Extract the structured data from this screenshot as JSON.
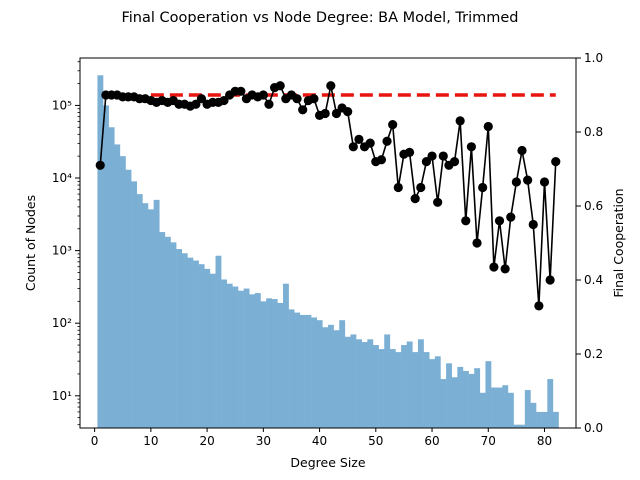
{
  "chart_data": {
    "type": "bar+line",
    "title": "Final Cooperation vs Node Degree: BA Model, Trimmed",
    "xlabel": "Degree Size",
    "ylabel_left": "Count of Nodes",
    "ylabel_right": "Final Cooperation",
    "x_ticks": [
      0,
      10,
      20,
      30,
      40,
      50,
      60,
      70,
      80
    ],
    "xlim": [
      -2.6,
      85.6
    ],
    "y_left_scale": "log",
    "y_left_ticks": [
      {
        "value": 10,
        "label": "10¹"
      },
      {
        "value": 100,
        "label": "10²"
      },
      {
        "value": 1000,
        "label": "10³"
      },
      {
        "value": 10000,
        "label": "10⁴"
      },
      {
        "value": 100000,
        "label": "10⁵"
      }
    ],
    "y_left_lim": [
      3.6,
      450000
    ],
    "y_right_ticks": [
      0.0,
      0.2,
      0.4,
      0.6,
      0.8,
      1.0
    ],
    "y_right_lim": [
      0.0,
      1.0
    ],
    "bar_color": "#7bafd4",
    "line_color": "#000000",
    "ref_line_color": "#e8140e",
    "grid": false,
    "legend": "none",
    "histogram": {
      "degrees": [
        1,
        2,
        3,
        4,
        5,
        6,
        7,
        8,
        9,
        10,
        11,
        12,
        13,
        14,
        15,
        16,
        17,
        18,
        19,
        20,
        21,
        22,
        23,
        24,
        25,
        26,
        27,
        28,
        29,
        30,
        31,
        32,
        33,
        34,
        35,
        36,
        37,
        38,
        39,
        40,
        41,
        42,
        43,
        44,
        45,
        46,
        47,
        48,
        49,
        50,
        51,
        52,
        53,
        54,
        55,
        56,
        57,
        58,
        59,
        60,
        61,
        62,
        63,
        64,
        65,
        66,
        67,
        68,
        69,
        70,
        71,
        72,
        73,
        74,
        75,
        76,
        77,
        78,
        79,
        80,
        81,
        82
      ],
      "counts": [
        260000,
        100000,
        50000,
        29000,
        20000,
        13000,
        9000,
        6000,
        4500,
        3700,
        5000,
        1800,
        1550,
        1300,
        1050,
        920,
        800,
        730,
        650,
        560,
        480,
        850,
        400,
        350,
        320,
        280,
        300,
        250,
        260,
        200,
        220,
        215,
        190,
        350,
        155,
        140,
        130,
        130,
        120,
        110,
        88,
        95,
        80,
        110,
        65,
        70,
        60,
        55,
        60,
        50,
        44,
        70,
        44,
        40,
        50,
        56,
        40,
        60,
        40,
        32,
        35,
        17,
        28,
        18,
        25,
        22,
        20,
        24,
        11,
        30,
        13,
        13,
        14,
        11,
        4,
        4,
        12,
        8,
        6,
        6,
        17,
        6
      ]
    },
    "cooperation": {
      "degrees": [
        1,
        2,
        3,
        4,
        5,
        6,
        7,
        8,
        9,
        10,
        11,
        12,
        13,
        14,
        15,
        16,
        17,
        18,
        19,
        20,
        21,
        22,
        23,
        24,
        25,
        26,
        27,
        28,
        29,
        30,
        31,
        32,
        33,
        34,
        35,
        36,
        37,
        38,
        39,
        40,
        41,
        42,
        43,
        44,
        45,
        46,
        47,
        48,
        49,
        50,
        51,
        52,
        53,
        54,
        55,
        56,
        57,
        58,
        59,
        60,
        61,
        62,
        63,
        64,
        65,
        66,
        67,
        68,
        69,
        70,
        71,
        72,
        73,
        74,
        75,
        76,
        77,
        78,
        79,
        80,
        81,
        82
      ],
      "values": [
        0.71,
        0.9,
        0.9,
        0.9,
        0.895,
        0.895,
        0.895,
        0.89,
        0.89,
        0.885,
        0.88,
        0.885,
        0.88,
        0.885,
        0.875,
        0.875,
        0.87,
        0.875,
        0.89,
        0.875,
        0.88,
        0.88,
        0.885,
        0.9,
        0.91,
        0.91,
        0.89,
        0.9,
        0.895,
        0.9,
        0.875,
        0.92,
        0.925,
        0.89,
        0.9,
        0.89,
        0.86,
        0.885,
        0.89,
        0.845,
        0.85,
        0.925,
        0.85,
        0.865,
        0.855,
        0.76,
        0.78,
        0.76,
        0.77,
        0.72,
        0.725,
        0.775,
        0.82,
        0.65,
        0.74,
        0.745,
        0.62,
        0.65,
        0.72,
        0.735,
        0.61,
        0.735,
        0.71,
        0.72,
        0.83,
        0.56,
        0.76,
        0.5,
        0.65,
        0.815,
        0.435,
        0.56,
        0.43,
        0.57,
        0.665,
        0.75,
        0.67,
        0.55,
        0.33,
        0.665,
        0.4,
        0.72
      ]
    },
    "reference_value": 0.9,
    "reference_range": [
      10,
      82
    ]
  }
}
